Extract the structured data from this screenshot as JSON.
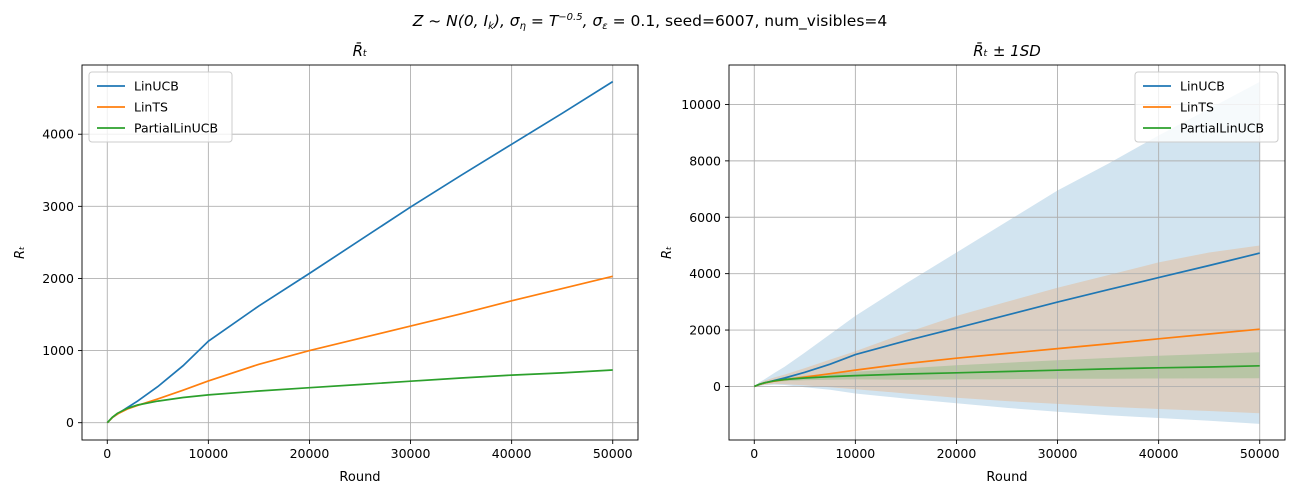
{
  "figure": {
    "suptitle_parts": [
      "Z ~ N(0, I",
      "k",
      "), σ",
      "η",
      " = T",
      "−0.5",
      ", σ",
      "ε",
      " = 0.1, seed=6007, num_visibles=4"
    ]
  },
  "colors": {
    "LinUCB": "#1f77b4",
    "LinTS": "#ff7f0e",
    "PartialLinUCB": "#2ca02c",
    "grid": "#b0b0b0",
    "axes": "#000000"
  },
  "chart_data": [
    {
      "type": "line",
      "title": "R̄ₜ",
      "xlabel": "Round",
      "ylabel": "Rₜ",
      "xlim": [
        -2500,
        52500
      ],
      "ylim": [
        -240,
        4960
      ],
      "xticks": [
        0,
        10000,
        20000,
        30000,
        40000,
        50000
      ],
      "yticks": [
        0,
        1000,
        2000,
        3000,
        4000
      ],
      "grid": true,
      "legend_position": "top-left",
      "x": [
        0,
        500,
        1000,
        2000,
        3000,
        5000,
        7500,
        10000,
        15000,
        20000,
        25000,
        30000,
        35000,
        40000,
        45000,
        50000
      ],
      "series": [
        {
          "name": "LinUCB",
          "values": [
            0,
            70,
            120,
            210,
            300,
            500,
            790,
            1130,
            1620,
            2070,
            2530,
            2990,
            3430,
            3860,
            4290,
            4730
          ]
        },
        {
          "name": "LinTS",
          "values": [
            0,
            70,
            120,
            190,
            240,
            330,
            450,
            580,
            810,
            1000,
            1170,
            1340,
            1510,
            1690,
            1860,
            2030
          ]
        },
        {
          "name": "PartialLinUCB",
          "values": [
            0,
            75,
            130,
            200,
            245,
            300,
            350,
            385,
            440,
            485,
            530,
            575,
            620,
            660,
            690,
            730
          ]
        }
      ]
    },
    {
      "type": "area",
      "title": "R̄ₜ ± 1SD",
      "xlabel": "Round",
      "ylabel": "Rₜ",
      "xlim": [
        -2500,
        52500
      ],
      "ylim": [
        -1900,
        11400
      ],
      "xticks": [
        0,
        10000,
        20000,
        30000,
        40000,
        50000
      ],
      "yticks": [
        0,
        2000,
        4000,
        6000,
        8000,
        10000
      ],
      "grid": true,
      "legend_position": "top-right",
      "x": [
        0,
        500,
        1000,
        2000,
        3000,
        5000,
        7500,
        10000,
        15000,
        20000,
        25000,
        30000,
        35000,
        40000,
        45000,
        50000
      ],
      "series": [
        {
          "name": "LinUCB",
          "values": [
            0,
            70,
            120,
            210,
            300,
            500,
            790,
            1130,
            1620,
            2070,
            2530,
            2990,
            3430,
            3860,
            4290,
            4730
          ],
          "upper": [
            0,
            150,
            250,
            480,
            700,
            1200,
            1850,
            2500,
            3650,
            4750,
            5850,
            6950,
            7900,
            8900,
            9850,
            10800
          ],
          "lower": [
            0,
            20,
            40,
            60,
            50,
            -30,
            -120,
            -250,
            -430,
            -600,
            -760,
            -900,
            -1020,
            -1120,
            -1220,
            -1330
          ]
        },
        {
          "name": "LinTS",
          "values": [
            0,
            70,
            120,
            190,
            240,
            330,
            450,
            580,
            810,
            1000,
            1170,
            1340,
            1510,
            1690,
            1860,
            2030
          ],
          "upper": [
            0,
            120,
            200,
            320,
            420,
            650,
            950,
            1250,
            1900,
            2500,
            3000,
            3500,
            3950,
            4400,
            4750,
            5000
          ],
          "lower": [
            0,
            30,
            60,
            90,
            80,
            40,
            -30,
            -100,
            -250,
            -400,
            -520,
            -620,
            -720,
            -800,
            -870,
            -950
          ]
        },
        {
          "name": "PartialLinUCB",
          "values": [
            0,
            75,
            130,
            200,
            245,
            300,
            350,
            385,
            440,
            485,
            530,
            575,
            620,
            660,
            690,
            730
          ],
          "upper": [
            0,
            90,
            160,
            240,
            300,
            380,
            460,
            520,
            640,
            750,
            840,
            930,
            1010,
            1090,
            1150,
            1210
          ],
          "lower": [
            0,
            60,
            100,
            160,
            190,
            220,
            240,
            250,
            240,
            250,
            260,
            270,
            275,
            280,
            285,
            290
          ]
        }
      ]
    }
  ]
}
